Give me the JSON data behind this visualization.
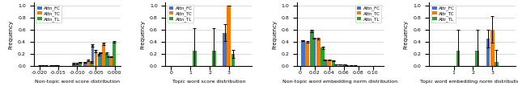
{
  "colors": {
    "FC": "#4472c4",
    "TC": "#f57c00",
    "TL": "#2ca02c"
  },
  "plot1": {
    "xlabel": "Non-topic word score distribution",
    "ylabel": "Frequency",
    "xlim": [
      -0.0215,
      0.0015
    ],
    "ylim": [
      0,
      1.05
    ],
    "xticks": [
      -0.02,
      -0.015,
      -0.01,
      -0.005,
      0.0
    ],
    "xticklabels": [
      "-0.020",
      "-0.015",
      "-0.010",
      "-0.005",
      "0.000"
    ],
    "bar_width": 0.00085,
    "centers": [
      -0.019,
      -0.016,
      -0.01,
      -0.007,
      -0.005,
      -0.003,
      -0.001
    ],
    "FC_vals": [
      0.005,
      0.005,
      0.04,
      0.06,
      0.34,
      0.22,
      0.16
    ],
    "TC_vals": [
      0.005,
      0.005,
      0.04,
      0.09,
      0.25,
      0.37,
      0.15
    ],
    "TL_vals": [
      0.005,
      0.01,
      0.06,
      0.065,
      0.19,
      0.21,
      0.4
    ],
    "FC_err": [
      0.002,
      0.002,
      0.01,
      0.01,
      0.015,
      0.012,
      0.008
    ],
    "TC_err": [
      0.002,
      0.002,
      0.01,
      0.015,
      0.018,
      0.018,
      0.008
    ],
    "TL_err": [
      0.002,
      0.004,
      0.01,
      0.012,
      0.015,
      0.015,
      0.015
    ],
    "legend_labels": [
      "Attn_FC",
      "Attn_TC",
      "Attn_TL"
    ],
    "legend_loc": "upper left"
  },
  "plot2": {
    "xlabel": "Topic word score distribution",
    "ylabel": "Frequency",
    "xlim": [
      -0.3,
      4.2
    ],
    "ylim": [
      0,
      1.05
    ],
    "xticks": [
      0,
      1,
      2,
      3
    ],
    "xticklabels": [
      "0",
      "1",
      "2",
      "3"
    ],
    "bar_width": 0.22,
    "centers": [
      1,
      2,
      3
    ],
    "FC_vals": [
      0.0,
      0.0,
      0.55
    ],
    "TC_vals": [
      0.0,
      0.0,
      1.0
    ],
    "TL_vals": [
      0.25,
      0.25,
      0.2
    ],
    "FC_err": [
      0.0,
      0.0,
      0.14
    ],
    "TC_err": [
      0.0,
      0.0,
      0.0
    ],
    "TL_err": [
      0.37,
      0.37,
      0.07
    ],
    "legend_labels": [
      "Attn_FC",
      "Attn_TC",
      "Attn_TL"
    ],
    "legend_loc": "upper left"
  },
  "plot3": {
    "xlabel": "Non-topic word embedding norm distribution",
    "ylabel": "Frequency",
    "xlim": [
      -0.004,
      0.115
    ],
    "ylim": [
      0,
      1.05
    ],
    "xticks": [
      0.0,
      0.02,
      0.04,
      0.06,
      0.08,
      0.1
    ],
    "xticklabels": [
      "0",
      "0.02",
      "0.04",
      "0.06",
      "0.08",
      "0.10"
    ],
    "bar_width": 0.006,
    "centers": [
      0.01,
      0.025,
      0.04,
      0.055,
      0.07,
      0.085
    ],
    "FC_vals": [
      0.42,
      0.46,
      0.1,
      0.025,
      0.006,
      0.003
    ],
    "TC_vals": [
      0.4,
      0.455,
      0.1,
      0.025,
      0.006,
      0.003
    ],
    "TL_vals": [
      0.58,
      0.3,
      0.09,
      0.025,
      0.006,
      0.003
    ],
    "FC_err": [
      0.012,
      0.012,
      0.008,
      0.004,
      0.002,
      0.001
    ],
    "TC_err": [
      0.012,
      0.012,
      0.008,
      0.004,
      0.002,
      0.001
    ],
    "TL_err": [
      0.018,
      0.025,
      0.008,
      0.004,
      0.002,
      0.001
    ],
    "legend_labels": [
      "Attn_FC",
      "Attn_TC",
      "Attn_TL"
    ],
    "legend_loc": "upper right"
  },
  "plot4": {
    "xlabel": "Topic word embedding norm distribution",
    "ylabel": "Frequency",
    "xlim": [
      -0.3,
      4.2
    ],
    "ylim": [
      0,
      1.05
    ],
    "xticks": [
      1,
      2,
      3
    ],
    "xticklabels": [
      "1",
      "2",
      "3"
    ],
    "bar_width": 0.22,
    "centers": [
      1,
      2,
      3
    ],
    "FC_vals": [
      0.0,
      0.0,
      0.45
    ],
    "TC_vals": [
      0.0,
      0.0,
      0.6
    ],
    "TL_vals": [
      0.25,
      0.25,
      0.07
    ],
    "FC_err": [
      0.0,
      0.0,
      0.15
    ],
    "TC_err": [
      0.0,
      0.0,
      0.22
    ],
    "TL_err": [
      0.35,
      0.35,
      0.2
    ],
    "legend_labels": [
      "Attr_FC",
      "Attr_TC",
      "Attr_TL"
    ],
    "legend_loc": "upper left"
  }
}
